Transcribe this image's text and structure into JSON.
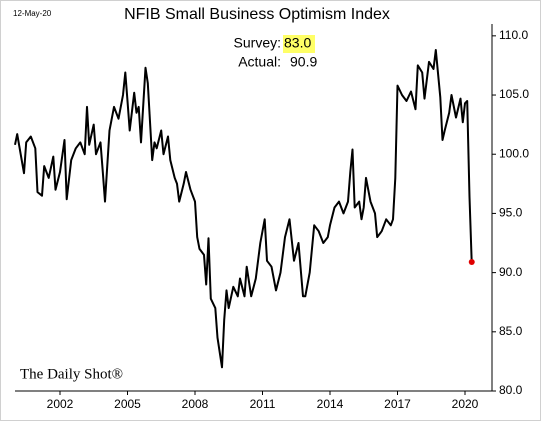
{
  "chart_data": {
    "type": "line",
    "title": "NFIB Small Business Optimism Index",
    "date": "12-May-20",
    "source": "The Daily Shot®",
    "annotations": [
      {
        "label": "Survey:",
        "value": "83.0"
      },
      {
        "label": "Actual:",
        "value": "90.9"
      }
    ],
    "highlight_color": "#ffff66",
    "color": "#000000",
    "last_marker_color": "#e00000",
    "x": [
      2000.0,
      2000.1,
      2000.3,
      2000.4,
      2000.5,
      2000.7,
      2000.9,
      2001.0,
      2001.2,
      2001.3,
      2001.5,
      2001.7,
      2001.8,
      2002.0,
      2002.2,
      2002.3,
      2002.5,
      2002.7,
      2002.9,
      2003.1,
      2003.2,
      2003.3,
      2003.5,
      2003.6,
      2003.8,
      2003.9,
      2004.0,
      2004.2,
      2004.4,
      2004.6,
      2004.8,
      2004.9,
      2005.0,
      2005.1,
      2005.3,
      2005.4,
      2005.5,
      2005.6,
      2005.8,
      2005.9,
      2006.1,
      2006.2,
      2006.3,
      2006.5,
      2006.6,
      2006.8,
      2006.9,
      2007.1,
      2007.2,
      2007.3,
      2007.5,
      2007.6,
      2007.8,
      2008.0,
      2008.1,
      2008.2,
      2008.4,
      2008.5,
      2008.6,
      2008.7,
      2008.9,
      2009.0,
      2009.2,
      2009.3,
      2009.4,
      2009.5,
      2009.7,
      2009.9,
      2010.0,
      2010.2,
      2010.3,
      2010.5,
      2010.7,
      2010.9,
      2011.1,
      2011.2,
      2011.4,
      2011.6,
      2011.8,
      2012.0,
      2012.2,
      2012.4,
      2012.6,
      2012.8,
      2012.9,
      2013.1,
      2013.3,
      2013.5,
      2013.7,
      2013.9,
      2014.0,
      2014.2,
      2014.4,
      2014.6,
      2014.8,
      2014.9,
      2015.0,
      2015.1,
      2015.3,
      2015.4,
      2015.5,
      2015.6,
      2015.8,
      2016.0,
      2016.1,
      2016.3,
      2016.5,
      2016.7,
      2016.8,
      2016.9,
      2017.0,
      2017.2,
      2017.4,
      2017.6,
      2017.8,
      2017.9,
      2018.1,
      2018.2,
      2018.4,
      2018.6,
      2018.7,
      2018.9,
      2019.0,
      2019.1,
      2019.3,
      2019.4,
      2019.6,
      2019.8,
      2019.9,
      2020.0,
      2020.1,
      2020.2,
      2020.3
    ],
    "values": [
      100.8,
      101.7,
      99.5,
      98.4,
      101.0,
      101.5,
      100.5,
      96.8,
      96.5,
      99.0,
      98.0,
      99.8,
      97.0,
      98.5,
      101.2,
      96.2,
      99.5,
      100.5,
      101.0,
      100.0,
      104.0,
      100.8,
      102.5,
      100.0,
      101.0,
      98.5,
      96.0,
      102.0,
      104.0,
      103.0,
      105.0,
      106.9,
      104.5,
      102.0,
      105.2,
      103.5,
      104.0,
      101.0,
      107.3,
      106.0,
      99.5,
      101.0,
      100.5,
      102.0,
      100.0,
      101.5,
      99.5,
      98.0,
      97.5,
      96.0,
      97.5,
      98.5,
      97.0,
      96.0,
      93.0,
      92.0,
      91.5,
      89.0,
      92.9,
      87.8,
      87.0,
      84.5,
      82.0,
      86.0,
      88.5,
      87.0,
      88.8,
      88.0,
      89.5,
      88.0,
      90.5,
      88.0,
      89.5,
      92.5,
      94.5,
      91.0,
      90.5,
      88.5,
      90.0,
      93.0,
      94.5,
      91.0,
      92.5,
      88.0,
      88.0,
      90.0,
      94.0,
      93.5,
      92.5,
      93.0,
      94.0,
      95.5,
      96.0,
      95.0,
      96.0,
      98.5,
      100.4,
      95.5,
      96.0,
      94.5,
      95.5,
      98.0,
      96.0,
      95.0,
      93.0,
      93.5,
      94.5,
      94.0,
      94.5,
      98.0,
      105.8,
      105.0,
      104.5,
      105.3,
      103.8,
      107.5,
      106.9,
      104.7,
      107.8,
      107.2,
      108.8,
      104.8,
      101.2,
      102.0,
      103.5,
      105.0,
      103.1,
      104.7,
      102.7,
      104.3,
      104.5,
      96.4,
      90.9
    ],
    "xlim": [
      2000,
      2021.2
    ],
    "xticks": [
      2002,
      2005,
      2008,
      2011,
      2014,
      2017,
      2020
    ],
    "ylim": [
      80,
      111
    ],
    "yticks": [
      {
        "value": 80,
        "label": "80.0"
      },
      {
        "value": 85,
        "label": "85.0"
      },
      {
        "value": 90,
        "label": "90.0"
      },
      {
        "value": 95,
        "label": "95.0"
      },
      {
        "value": 100,
        "label": "100.0"
      },
      {
        "value": 105,
        "label": "105.0"
      },
      {
        "value": 110,
        "label": "110.0"
      }
    ]
  }
}
